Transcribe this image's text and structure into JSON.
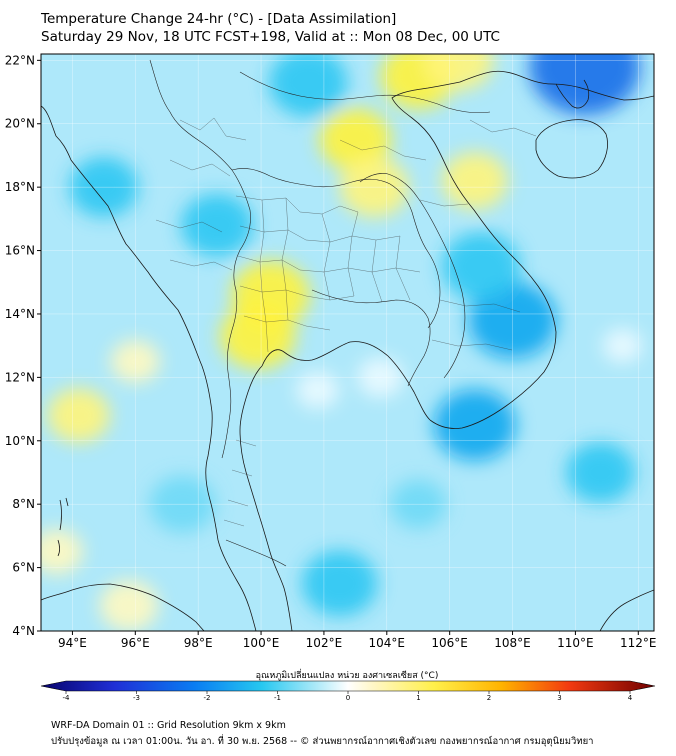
{
  "title_line1": "Temperature Change 24-hr (°C) - [Data Assimilation]",
  "title_line2": "Saturday 29 Nov, 18 UTC FCST+198, Valid at :: Mon 08 Dec, 00 UTC",
  "map": {
    "lon_range": [
      93,
      112.5
    ],
    "lat_range": [
      4,
      22.2
    ],
    "lon_ticks": [
      {
        "value": 94,
        "label": "94°E"
      },
      {
        "value": 96,
        "label": "96°E"
      },
      {
        "value": 98,
        "label": "98°E"
      },
      {
        "value": 100,
        "label": "100°E"
      },
      {
        "value": 102,
        "label": "102°E"
      },
      {
        "value": 104,
        "label": "104°E"
      },
      {
        "value": 106,
        "label": "106°E"
      },
      {
        "value": 108,
        "label": "108°E"
      },
      {
        "value": 110,
        "label": "110°E"
      },
      {
        "value": 112,
        "label": "112°E"
      }
    ],
    "lat_ticks": [
      {
        "value": 4,
        "label": "4°N"
      },
      {
        "value": 6,
        "label": "6°N"
      },
      {
        "value": 8,
        "label": "8°N"
      },
      {
        "value": 10,
        "label": "10°N"
      },
      {
        "value": 12,
        "label": "12°N"
      },
      {
        "value": 14,
        "label": "14°N"
      },
      {
        "value": 16,
        "label": "16°N"
      },
      {
        "value": 18,
        "label": "18°N"
      },
      {
        "value": 20,
        "label": "20°N"
      },
      {
        "value": 22,
        "label": "22°N"
      }
    ],
    "background_color": "#aee8fa",
    "anomalies": [
      {
        "lon": 100.3,
        "lat": 14.6,
        "value": 1.3
      },
      {
        "lon": 99.9,
        "lat": 13.3,
        "value": 1.2
      },
      {
        "lon": 103.0,
        "lat": 19.5,
        "value": 1.1
      },
      {
        "lon": 103.6,
        "lat": 18.0,
        "value": 1.0
      },
      {
        "lon": 106.8,
        "lat": 18.2,
        "value": 0.9
      },
      {
        "lon": 105.0,
        "lat": 21.5,
        "value": 1.2
      },
      {
        "lon": 106.3,
        "lat": 22.0,
        "value": 1.0
      },
      {
        "lon": 94.2,
        "lat": 10.8,
        "value": 0.8
      },
      {
        "lon": 95.8,
        "lat": 4.8,
        "value": 0.7
      },
      {
        "lon": 93.5,
        "lat": 6.5,
        "value": 0.5
      },
      {
        "lon": 96.0,
        "lat": 12.5,
        "value": 0.4
      },
      {
        "lon": 110.3,
        "lat": 21.8,
        "value": -2.3
      },
      {
        "lon": 108.0,
        "lat": 13.8,
        "value": -1.6
      },
      {
        "lon": 106.8,
        "lat": 10.5,
        "value": -1.4
      },
      {
        "lon": 107.0,
        "lat": 15.5,
        "value": -1.3
      },
      {
        "lon": 101.5,
        "lat": 21.3,
        "value": -1.3
      },
      {
        "lon": 98.6,
        "lat": 16.8,
        "value": -1.1
      },
      {
        "lon": 95.0,
        "lat": 18.0,
        "value": -1.0
      },
      {
        "lon": 102.5,
        "lat": 5.5,
        "value": -1.2
      },
      {
        "lon": 97.5,
        "lat": 8.0,
        "value": -0.9
      },
      {
        "lon": 110.8,
        "lat": 9.0,
        "value": -1.0
      },
      {
        "lon": 105.0,
        "lat": 8.0,
        "value": -0.6
      },
      {
        "lon": 103.8,
        "lat": 12.0,
        "value": 0.3
      },
      {
        "lon": 101.8,
        "lat": 11.6,
        "value": 0.2
      },
      {
        "lon": 111.5,
        "lat": 13.0,
        "value": 0.1
      }
    ]
  },
  "colorbar": {
    "title": "อุณหภูมิเปลี่ยนแปลง หน่วย องศาเซลเซียส (°C)",
    "min": -4,
    "max": 4,
    "tick_labels": [
      "-4",
      "-3",
      "-2",
      "-1",
      "0",
      "1",
      "2",
      "3",
      "4"
    ]
  },
  "footer_line1": "WRF-DA Domain 01 :: Grid Resolution 9km x 9km",
  "footer_line2": "ปรับปรุงข้อมูล ณ เวลา 01:00น. วัน อา. ที่ 30 พ.ย. 2568 -- © ส่วนพยากรณ์อากาศเชิงตัวเลข กองพยากรณ์อากาศ กรมอุตุนิยมวิทยา"
}
